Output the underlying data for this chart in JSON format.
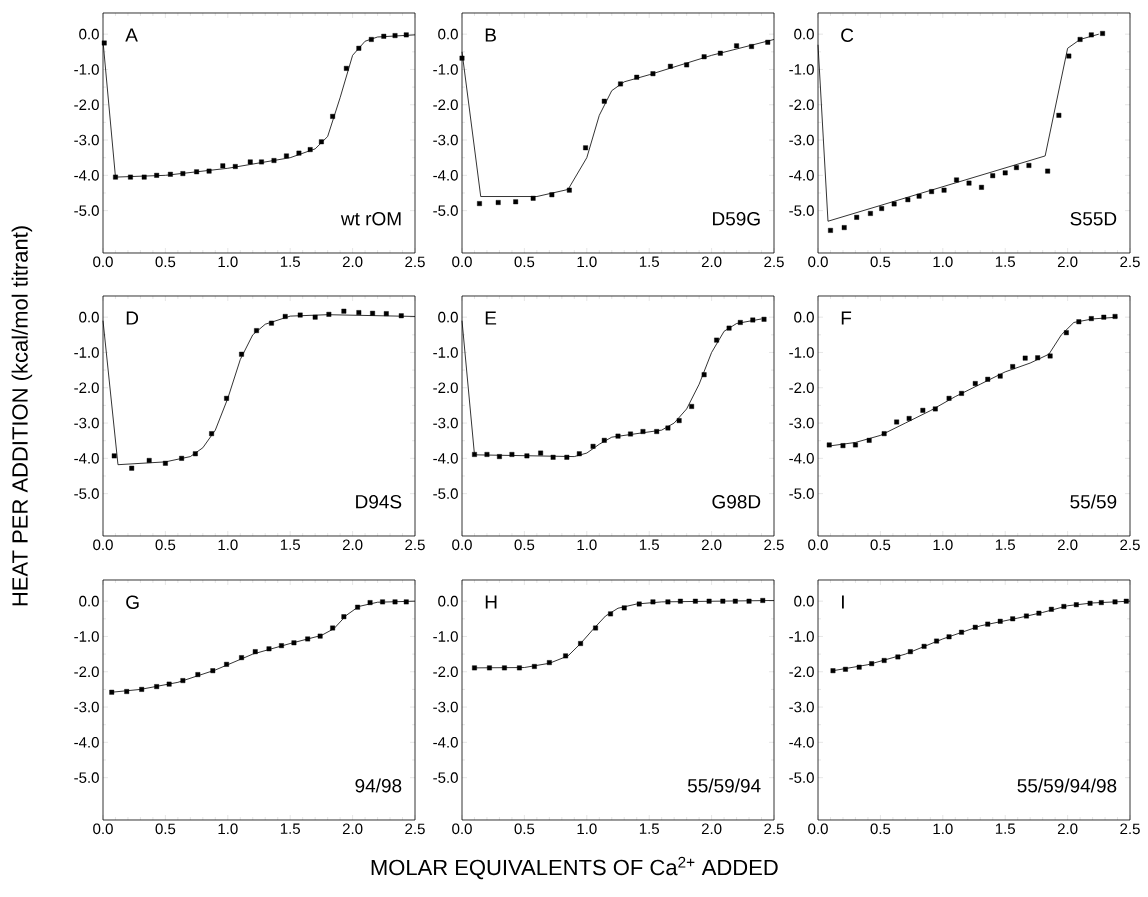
{
  "chart_data": [
    {
      "type": "scatter",
      "annotations": [
        "A",
        "wt rOM"
      ],
      "xlim": [
        0,
        2.5
      ],
      "ylim": [
        -6.2,
        0.6
      ],
      "xticks": [
        {
          "value": 0,
          "label": "0.0"
        },
        0.5,
        {
          "value": 1,
          "label": "1.0"
        },
        1.5,
        {
          "value": 2,
          "label": "2.0"
        },
        2.5
      ],
      "yticks": [
        {
          "value": 0,
          "label": "0.0"
        },
        {
          "value": -1,
          "label": "-1.0"
        },
        {
          "value": -2,
          "label": "-2.0"
        },
        {
          "value": -3,
          "label": "-3.0"
        },
        {
          "value": -4,
          "label": "-4.0"
        },
        {
          "value": -5,
          "label": "-5.0"
        }
      ],
      "series": [
        {
          "type": "scatter",
          "marker": "square",
          "color": "#000000",
          "x": [
            0.01,
            0.1,
            0.22,
            0.33,
            0.43,
            0.54,
            0.64,
            0.75,
            0.85,
            0.96,
            1.06,
            1.18,
            1.27,
            1.37,
            1.47,
            1.57,
            1.66,
            1.75,
            1.84,
            1.95,
            2.05,
            2.15,
            2.25,
            2.34,
            2.43
          ],
          "values": [
            -0.25,
            -4.05,
            -4.05,
            -4.05,
            -4.0,
            -3.97,
            -3.95,
            -3.9,
            -3.88,
            -3.73,
            -3.75,
            -3.62,
            -3.62,
            -3.58,
            -3.45,
            -3.37,
            -3.27,
            -3.05,
            -2.33,
            -0.97,
            -0.4,
            -0.15,
            -0.06,
            -0.04,
            -0.02
          ]
        },
        {
          "type": "line",
          "color": "#000000",
          "x": [
            0,
            0.1,
            0.5,
            1.0,
            1.5,
            1.7,
            1.8,
            1.9,
            2.0,
            2.1,
            2.2,
            2.5
          ],
          "values": [
            -0.2,
            -4.05,
            -4.0,
            -3.8,
            -3.5,
            -3.25,
            -2.9,
            -1.8,
            -0.6,
            -0.2,
            -0.08,
            -0.02
          ]
        }
      ]
    },
    {
      "type": "scatter",
      "annotations": [
        "B",
        "D59G"
      ],
      "xlim": [
        0,
        2.5
      ],
      "ylim": [
        -6.2,
        0.6
      ],
      "xticks": [
        {
          "value": 0,
          "label": "0.0"
        },
        0.5,
        {
          "value": 1,
          "label": "1.0"
        },
        1.5,
        {
          "value": 2,
          "label": "2.0"
        },
        2.5
      ],
      "yticks": [
        {
          "value": 0,
          "label": "0.0"
        },
        {
          "value": -1,
          "label": "-1.0"
        },
        {
          "value": -2,
          "label": "-2.0"
        },
        {
          "value": -3,
          "label": "-3.0"
        },
        {
          "value": -4,
          "label": "-4.0"
        },
        {
          "value": -5,
          "label": "-5.0"
        }
      ],
      "series": [
        {
          "type": "scatter",
          "marker": "square",
          "color": "#000000",
          "x": [
            0.0,
            0.14,
            0.29,
            0.43,
            0.57,
            0.72,
            0.86,
            0.99,
            1.14,
            1.27,
            1.4,
            1.53,
            1.67,
            1.8,
            1.94,
            2.07,
            2.2,
            2.32,
            2.45
          ],
          "values": [
            -0.68,
            -4.8,
            -4.77,
            -4.75,
            -4.65,
            -4.55,
            -4.42,
            -3.22,
            -1.9,
            -1.41,
            -1.22,
            -1.12,
            -0.91,
            -0.87,
            -0.64,
            -0.54,
            -0.33,
            -0.35,
            -0.23
          ]
        },
        {
          "type": "line",
          "color": "#000000",
          "x": [
            0,
            0.15,
            0.6,
            0.85,
            1.0,
            1.1,
            1.2,
            1.3,
            1.5,
            2.0,
            2.5
          ],
          "values": [
            -0.5,
            -4.6,
            -4.6,
            -4.4,
            -3.5,
            -2.3,
            -1.6,
            -1.35,
            -1.15,
            -0.6,
            -0.15
          ]
        }
      ]
    },
    {
      "type": "scatter",
      "annotations": [
        "C",
        "S55D"
      ],
      "xlim": [
        0,
        2.5
      ],
      "ylim": [
        -6.2,
        0.6
      ],
      "xticks": [
        {
          "value": 0,
          "label": "0.0"
        },
        0.5,
        {
          "value": 1,
          "label": "1.0"
        },
        1.5,
        {
          "value": 2,
          "label": "2.0"
        },
        2.5
      ],
      "yticks": [
        {
          "value": 0,
          "label": "0.0"
        },
        {
          "value": -1,
          "label": "-1.0"
        },
        {
          "value": -2,
          "label": "-2.0"
        },
        {
          "value": -3,
          "label": "-3.0"
        },
        {
          "value": -4,
          "label": "-4.0"
        },
        {
          "value": -5,
          "label": "-5.0"
        }
      ],
      "series": [
        {
          "type": "scatter",
          "marker": "square",
          "color": "#000000",
          "x": [
            0.1,
            0.21,
            0.31,
            0.42,
            0.51,
            0.61,
            0.72,
            0.81,
            0.91,
            1.01,
            1.11,
            1.21,
            1.31,
            1.4,
            1.5,
            1.59,
            1.69,
            1.84,
            1.93,
            2.01,
            2.1,
            2.19,
            2.28
          ],
          "values": [
            -5.56,
            -5.48,
            -5.19,
            -5.08,
            -4.94,
            -4.81,
            -4.69,
            -4.59,
            -4.46,
            -4.42,
            -4.13,
            -4.22,
            -4.34,
            -4.01,
            -3.93,
            -3.78,
            -3.72,
            -3.88,
            -2.3,
            -0.62,
            -0.15,
            -0.02,
            0.02
          ]
        },
        {
          "type": "line",
          "color": "#000000",
          "x": [
            0,
            0.08,
            1.82,
            2.0,
            2.1,
            2.25
          ],
          "values": [
            -0.3,
            -5.3,
            -3.45,
            -0.4,
            -0.15,
            0.0
          ]
        }
      ]
    },
    {
      "type": "scatter",
      "annotations": [
        "D",
        "D94S"
      ],
      "ylabel": "HEAT PER ADDITION  (kcal/mol titrant)",
      "xlim": [
        0,
        2.5
      ],
      "ylim": [
        -6.2,
        0.6
      ],
      "xticks": [
        {
          "value": 0,
          "label": "0.0"
        },
        0.5,
        {
          "value": 1,
          "label": "1.0"
        },
        1.5,
        {
          "value": 2,
          "label": "2.0"
        },
        2.5
      ],
      "yticks": [
        {
          "value": 0,
          "label": "0.0"
        },
        {
          "value": -1,
          "label": "-1.0"
        },
        {
          "value": -2,
          "label": "-2.0"
        },
        {
          "value": -3,
          "label": "-3.0"
        },
        {
          "value": -4,
          "label": "-4.0"
        },
        {
          "value": -5,
          "label": "-5.0"
        }
      ],
      "series": [
        {
          "type": "scatter",
          "marker": "square",
          "color": "#000000",
          "x": [
            0.09,
            0.23,
            0.37,
            0.5,
            0.63,
            0.74,
            0.87,
            0.99,
            1.11,
            1.23,
            1.35,
            1.46,
            1.58,
            1.7,
            1.81,
            1.93,
            2.05,
            2.16,
            2.27,
            2.39
          ],
          "values": [
            -3.93,
            -4.28,
            -4.06,
            -4.14,
            -4.0,
            -3.87,
            -3.3,
            -2.3,
            -1.05,
            -0.38,
            -0.17,
            0.02,
            0.06,
            0.0,
            0.08,
            0.17,
            0.13,
            0.11,
            0.1,
            0.04
          ]
        },
        {
          "type": "line",
          "color": "#000000",
          "x": [
            0,
            0.12,
            0.5,
            0.7,
            0.8,
            0.9,
            1.0,
            1.1,
            1.2,
            1.3,
            1.5,
            1.8,
            2.5
          ],
          "values": [
            -0.1,
            -4.18,
            -4.1,
            -3.95,
            -3.7,
            -3.2,
            -2.3,
            -1.2,
            -0.5,
            -0.2,
            0.03,
            0.07,
            0.02
          ]
        }
      ]
    },
    {
      "type": "scatter",
      "annotations": [
        "E",
        "G98D"
      ],
      "xlim": [
        0,
        2.5
      ],
      "ylim": [
        -6.2,
        0.6
      ],
      "xticks": [
        {
          "value": 0,
          "label": "0.0"
        },
        0.5,
        {
          "value": 1,
          "label": "1.0"
        },
        1.5,
        {
          "value": 2,
          "label": "2.0"
        },
        2.5
      ],
      "yticks": [
        {
          "value": 0,
          "label": "0.0"
        },
        {
          "value": -1,
          "label": "-1.0"
        },
        {
          "value": -2,
          "label": "-2.0"
        },
        {
          "value": -3,
          "label": "-3.0"
        },
        {
          "value": -4,
          "label": "-4.0"
        },
        {
          "value": -5,
          "label": "-5.0"
        }
      ],
      "series": [
        {
          "type": "scatter",
          "marker": "square",
          "color": "#000000",
          "x": [
            0.1,
            0.2,
            0.3,
            0.4,
            0.52,
            0.63,
            0.73,
            0.84,
            0.94,
            1.05,
            1.14,
            1.25,
            1.35,
            1.45,
            1.56,
            1.65,
            1.74,
            1.84,
            1.94,
            2.04,
            2.14,
            2.23,
            2.33,
            2.42
          ],
          "values": [
            -3.89,
            -3.89,
            -3.95,
            -3.89,
            -3.93,
            -3.85,
            -3.97,
            -3.97,
            -3.87,
            -3.66,
            -3.49,
            -3.37,
            -3.31,
            -3.24,
            -3.24,
            -3.14,
            -2.93,
            -2.53,
            -1.63,
            -0.65,
            -0.31,
            -0.15,
            -0.08,
            -0.06
          ]
        },
        {
          "type": "line",
          "color": "#000000",
          "x": [
            0,
            0.1,
            0.9,
            1.0,
            1.1,
            1.2,
            1.4,
            1.6,
            1.7,
            1.8,
            1.9,
            2.0,
            2.1,
            2.2,
            2.4
          ],
          "values": [
            -0.1,
            -3.9,
            -3.95,
            -3.85,
            -3.6,
            -3.4,
            -3.3,
            -3.2,
            -3.0,
            -2.6,
            -1.9,
            -1.0,
            -0.4,
            -0.18,
            -0.05
          ]
        }
      ]
    },
    {
      "type": "scatter",
      "annotations": [
        "F",
        "55/59"
      ],
      "xlim": [
        0,
        2.5
      ],
      "ylim": [
        -6.2,
        0.6
      ],
      "xticks": [
        {
          "value": 0,
          "label": "0.0"
        },
        0.5,
        {
          "value": 1,
          "label": "1.0"
        },
        1.5,
        {
          "value": 2,
          "label": "2.0"
        },
        2.5
      ],
      "yticks": [
        {
          "value": 0,
          "label": "0.0"
        },
        {
          "value": -1,
          "label": "-1.0"
        },
        {
          "value": -2,
          "label": "-2.0"
        },
        {
          "value": -3,
          "label": "-3.0"
        },
        {
          "value": -4,
          "label": "-4.0"
        },
        {
          "value": -5,
          "label": "-5.0"
        }
      ],
      "series": [
        {
          "type": "scatter",
          "marker": "square",
          "color": "#000000",
          "x": [
            0.09,
            0.2,
            0.3,
            0.41,
            0.53,
            0.63,
            0.73,
            0.84,
            0.94,
            1.05,
            1.15,
            1.26,
            1.36,
            1.46,
            1.56,
            1.66,
            1.76,
            1.86,
            1.99,
            2.09,
            2.19,
            2.29,
            2.38
          ],
          "values": [
            -3.62,
            -3.64,
            -3.62,
            -3.49,
            -3.3,
            -2.97,
            -2.87,
            -2.64,
            -2.6,
            -2.3,
            -2.16,
            -1.88,
            -1.76,
            -1.67,
            -1.4,
            -1.16,
            -1.15,
            -1.1,
            -0.44,
            -0.13,
            -0.04,
            0.0,
            0.02
          ]
        },
        {
          "type": "line",
          "color": "#000000",
          "x": [
            0.09,
            0.3,
            0.5,
            0.7,
            0.9,
            1.1,
            1.3,
            1.5,
            1.7,
            1.85,
            1.95,
            2.05,
            2.2,
            2.4
          ],
          "values": [
            -3.65,
            -3.55,
            -3.35,
            -3.0,
            -2.65,
            -2.25,
            -1.9,
            -1.55,
            -1.3,
            -1.05,
            -0.5,
            -0.15,
            -0.05,
            0.0
          ]
        }
      ]
    },
    {
      "type": "scatter",
      "annotations": [
        "G",
        "94/98"
      ],
      "xlim": [
        0,
        2.5
      ],
      "ylim": [
        -6.2,
        0.6
      ],
      "xticks": [
        {
          "value": 0,
          "label": "0.0"
        },
        0.5,
        {
          "value": 1,
          "label": "1.0"
        },
        1.5,
        {
          "value": 2,
          "label": "2.0"
        },
        2.5
      ],
      "yticks": [
        {
          "value": 0,
          "label": "0.0"
        },
        {
          "value": -1,
          "label": "-1.0"
        },
        {
          "value": -2,
          "label": "-2.0"
        },
        {
          "value": -3,
          "label": "-3.0"
        },
        {
          "value": -4,
          "label": "-4.0"
        },
        {
          "value": -5,
          "label": "-5.0"
        }
      ],
      "series": [
        {
          "type": "scatter",
          "marker": "square",
          "color": "#000000",
          "x": [
            0.07,
            0.19,
            0.31,
            0.43,
            0.53,
            0.64,
            0.76,
            0.88,
            0.99,
            1.11,
            1.22,
            1.33,
            1.43,
            1.53,
            1.64,
            1.74,
            1.84,
            1.93,
            2.04,
            2.14,
            2.24,
            2.34,
            2.43
          ],
          "values": [
            -2.58,
            -2.56,
            -2.5,
            -2.42,
            -2.35,
            -2.25,
            -2.08,
            -1.97,
            -1.79,
            -1.6,
            -1.43,
            -1.35,
            -1.26,
            -1.18,
            -1.07,
            -0.99,
            -0.76,
            -0.44,
            -0.17,
            -0.04,
            -0.02,
            -0.02,
            -0.02
          ]
        },
        {
          "type": "line",
          "color": "#000000",
          "x": [
            0.07,
            0.3,
            0.6,
            0.9,
            1.2,
            1.5,
            1.75,
            1.85,
            1.95,
            2.05,
            2.2,
            2.5
          ],
          "values": [
            -2.58,
            -2.5,
            -2.3,
            -1.95,
            -1.5,
            -1.2,
            -0.97,
            -0.78,
            -0.4,
            -0.15,
            -0.03,
            0.0
          ]
        }
      ]
    },
    {
      "type": "scatter",
      "annotations": [
        "H",
        "55/59/94"
      ],
      "xlabel": "MOLAR EQUIVALENTS OF Ca$^{2+}$ ADDED",
      "xlim": [
        0,
        2.5
      ],
      "ylim": [
        -6.2,
        0.6
      ],
      "xticks": [
        {
          "value": 0,
          "label": "0.0"
        },
        0.5,
        {
          "value": 1,
          "label": "1.0"
        },
        1.5,
        {
          "value": 2,
          "label": "2.0"
        },
        2.5
      ],
      "yticks": [
        {
          "value": 0,
          "label": "0.0"
        },
        {
          "value": -1,
          "label": "-1.0"
        },
        {
          "value": -2,
          "label": "-2.0"
        },
        {
          "value": -3,
          "label": "-3.0"
        },
        {
          "value": -4,
          "label": "-4.0"
        },
        {
          "value": -5,
          "label": "-5.0"
        }
      ],
      "series": [
        {
          "type": "scatter",
          "marker": "square",
          "color": "#000000",
          "x": [
            0.1,
            0.22,
            0.34,
            0.46,
            0.58,
            0.7,
            0.83,
            0.95,
            1.07,
            1.19,
            1.3,
            1.42,
            1.53,
            1.65,
            1.75,
            1.87,
            1.98,
            2.09,
            2.19,
            2.3,
            2.41
          ],
          "values": [
            -1.89,
            -1.89,
            -1.89,
            -1.89,
            -1.85,
            -1.74,
            -1.55,
            -1.2,
            -0.76,
            -0.36,
            -0.19,
            -0.08,
            -0.02,
            -0.02,
            0.0,
            0.0,
            0.0,
            0.0,
            0.0,
            0.0,
            0.02
          ]
        },
        {
          "type": "line",
          "color": "#000000",
          "x": [
            0.1,
            0.5,
            0.7,
            0.85,
            0.95,
            1.05,
            1.15,
            1.25,
            1.4,
            1.6,
            2.5
          ],
          "values": [
            -1.89,
            -1.88,
            -1.76,
            -1.55,
            -1.2,
            -0.8,
            -0.42,
            -0.2,
            -0.08,
            -0.02,
            0.02
          ]
        }
      ]
    },
    {
      "type": "scatter",
      "annotations": [
        "I",
        "55/59/94/98"
      ],
      "xlim": [
        0,
        2.5
      ],
      "ylim": [
        -6.2,
        0.6
      ],
      "xticks": [
        {
          "value": 0,
          "label": "0.0"
        },
        0.5,
        {
          "value": 1,
          "label": "1.0"
        },
        1.5,
        {
          "value": 2,
          "label": "2.0"
        },
        2.5
      ],
      "yticks": [
        {
          "value": 0,
          "label": "0.0"
        },
        {
          "value": -1,
          "label": "-1.0"
        },
        {
          "value": -2,
          "label": "-2.0"
        },
        {
          "value": -3,
          "label": "-3.0"
        },
        {
          "value": -4,
          "label": "-4.0"
        },
        {
          "value": -5,
          "label": "-5.0"
        }
      ],
      "series": [
        {
          "type": "scatter",
          "marker": "square",
          "color": "#000000",
          "x": [
            0.12,
            0.22,
            0.33,
            0.43,
            0.53,
            0.64,
            0.74,
            0.85,
            0.95,
            1.05,
            1.15,
            1.26,
            1.36,
            1.46,
            1.56,
            1.67,
            1.77,
            1.87,
            1.97,
            2.07,
            2.18,
            2.27,
            2.38,
            2.47
          ],
          "values": [
            -1.97,
            -1.93,
            -1.87,
            -1.77,
            -1.68,
            -1.58,
            -1.43,
            -1.28,
            -1.13,
            -1.01,
            -0.88,
            -0.74,
            -0.65,
            -0.57,
            -0.5,
            -0.42,
            -0.34,
            -0.23,
            -0.15,
            -0.1,
            -0.06,
            -0.04,
            -0.02,
            0.0
          ]
        },
        {
          "type": "line",
          "color": "#000000",
          "x": [
            0.12,
            0.4,
            0.7,
            1.0,
            1.3,
            1.6,
            1.8,
            2.0,
            2.2,
            2.5
          ],
          "values": [
            -1.97,
            -1.8,
            -1.5,
            -1.07,
            -0.7,
            -0.48,
            -0.32,
            -0.13,
            -0.05,
            0.0
          ]
        }
      ]
    }
  ]
}
